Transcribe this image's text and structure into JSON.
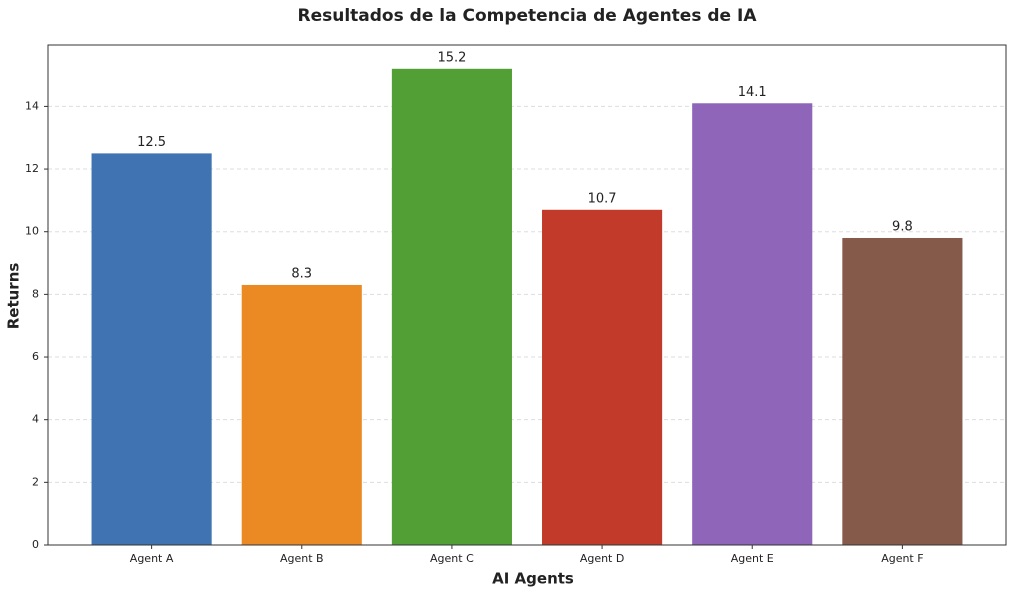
{
  "chart_data": {
    "type": "bar",
    "title": "Resultados de la Competencia de Agentes de IA",
    "xlabel": "AI Agents",
    "ylabel": "Returns",
    "categories": [
      "Agent A",
      "Agent B",
      "Agent C",
      "Agent D",
      "Agent E",
      "Agent F"
    ],
    "values": [
      12.5,
      8.3,
      15.2,
      10.7,
      14.1,
      9.8
    ],
    "colors": [
      "#3f73b1",
      "#eb8a22",
      "#52a035",
      "#c23b2a",
      "#8e65b8",
      "#855a4a"
    ],
    "ylim": [
      0,
      15.96
    ],
    "yticks": [
      0,
      2,
      4,
      6,
      8,
      10,
      12,
      14
    ],
    "grid": true
  }
}
